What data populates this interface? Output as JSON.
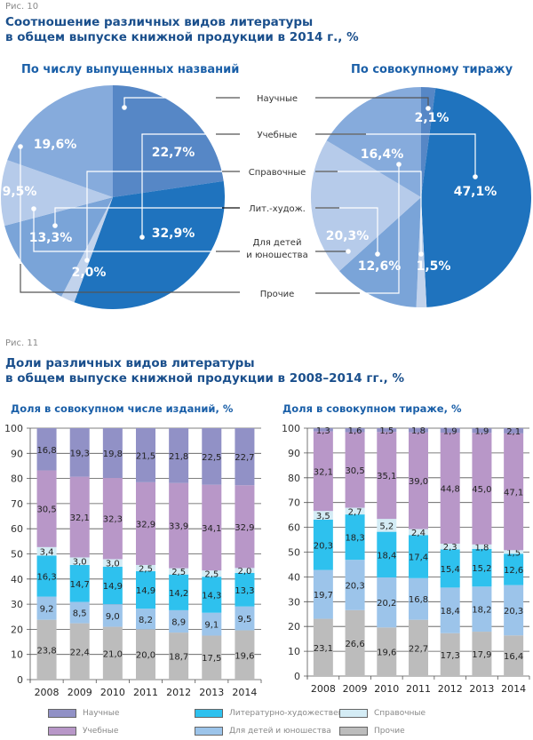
{
  "fig10": {
    "number": "Рис. 10",
    "title_line1": "Соотношение различных видов литературы",
    "title_line2": "в общем выпуске книжной продукции в 2014 г., %"
  },
  "fig11": {
    "number": "Рис. 11",
    "title_line1": "Доли различных видов литературы",
    "title_line2": "в общем выпуске книжной продукции в 2008–2014 гг., %"
  },
  "center_labels": [
    "Научные",
    "Учебные",
    "Справочные",
    "Лит.-худож.",
    "Для детей",
    "и юношества",
    "Прочие"
  ],
  "colors": {
    "pie_scientific": "#5687c6",
    "pie_educational": "#1f73be",
    "pie_reference": "#c2d3ec",
    "pie_fiction": "#7aa4d8",
    "pie_children": "#b6cbea",
    "pie_other": "#86abdc",
    "bar_scientific": "#9191c6",
    "bar_educational": "#b897c8",
    "bar_fiction": "#2ec1ee",
    "bar_reference": "#d4ecf5",
    "bar_children": "#9cc4ea",
    "bar_other": "#bcbcbc"
  },
  "legend": [
    {
      "label": "Научные",
      "color": "#9191c6"
    },
    {
      "label": "Учебные",
      "color": "#b897c8"
    },
    {
      "label": "Литературно-художественные",
      "color": "#2ec1ee"
    },
    {
      "label": "Для детей и юношества",
      "color": "#9cc4ea"
    },
    {
      "label": "Справочные",
      "color": "#d4ecf5"
    },
    {
      "label": "Прочие",
      "color": "#bcbcbc"
    }
  ],
  "chart_data": [
    {
      "type": "pie",
      "title": "По числу выпущенных названий",
      "labels": [
        "Научные",
        "Учебные",
        "Справочные",
        "Лит.-худож.",
        "Для детей и юношества",
        "Прочие"
      ],
      "values": [
        22.7,
        32.9,
        2.0,
        13.3,
        9.5,
        19.6
      ],
      "value_labels": [
        "22,7%",
        "32,9%",
        "2,0%",
        "13,3%",
        "9,5%",
        "19,6%"
      ]
    },
    {
      "type": "pie",
      "title": "По совокупному тиражу",
      "labels": [
        "Научные",
        "Учебные",
        "Справочные",
        "Лит.-худож.",
        "Для детей и юношества",
        "Прочие"
      ],
      "values": [
        2.1,
        47.1,
        1.5,
        12.6,
        20.3,
        16.4
      ],
      "value_labels": [
        "2,1%",
        "47,1%",
        "1,5%",
        "12,6%",
        "20,3%",
        "16,4%"
      ]
    },
    {
      "type": "bar",
      "stacked": true,
      "title": "Доля в совокупном числе изданий, %",
      "categories": [
        "2008",
        "2009",
        "2010",
        "2011",
        "2012",
        "2013",
        "2014"
      ],
      "ylim": [
        0,
        100
      ],
      "yticks": [
        0,
        10,
        20,
        30,
        40,
        50,
        60,
        70,
        80,
        90,
        100
      ],
      "grid": true,
      "series": [
        {
          "name": "Прочие",
          "values": [
            23.8,
            22.4,
            21.0,
            20.0,
            18.7,
            17.5,
            19.6
          ],
          "labels": [
            "23,8",
            "22,4",
            "21,0",
            "20,0",
            "18,7",
            "17,5",
            "19,6"
          ]
        },
        {
          "name": "Для детей и юношества",
          "values": [
            9.2,
            8.5,
            9.0,
            8.2,
            8.9,
            9.1,
            9.5
          ],
          "labels": [
            "9,2",
            "8,5",
            "9,0",
            "8,2",
            "8,9",
            "9,1",
            "9,5"
          ]
        },
        {
          "name": "Литературно-художественные",
          "values": [
            16.3,
            14.7,
            14.9,
            14.9,
            14.2,
            14.3,
            13.3
          ],
          "labels": [
            "16,3",
            "14,7",
            "14,9",
            "14,9",
            "14,2",
            "14,3",
            "13,3"
          ]
        },
        {
          "name": "Справочные",
          "values": [
            3.4,
            3.0,
            3.0,
            2.5,
            2.5,
            2.5,
            2.0
          ],
          "labels": [
            "3,4",
            "3,0",
            "3,0",
            "2,5",
            "2,5",
            "2,5",
            "2,0"
          ]
        },
        {
          "name": "Учебные",
          "values": [
            30.5,
            32.1,
            32.3,
            32.9,
            33.9,
            34.1,
            32.9
          ],
          "labels": [
            "30,5",
            "32,1",
            "32,3",
            "32,9",
            "33,9",
            "34,1",
            "32,9"
          ]
        },
        {
          "name": "Научные",
          "values": [
            16.8,
            19.3,
            19.8,
            21.5,
            21.8,
            22.5,
            22.7
          ],
          "labels": [
            "16,8",
            "19,3",
            "19,8",
            "21,5",
            "21,8",
            "22,5",
            "22,7"
          ]
        }
      ]
    },
    {
      "type": "bar",
      "stacked": true,
      "title": "Доля в совокупном тираже, %",
      "categories": [
        "2008",
        "2009",
        "2010",
        "2011",
        "2012",
        "2013",
        "2014"
      ],
      "ylim": [
        0,
        100
      ],
      "yticks": [
        0,
        10,
        20,
        30,
        40,
        50,
        60,
        70,
        80,
        90,
        100
      ],
      "grid": true,
      "series": [
        {
          "name": "Прочие",
          "values": [
            23.1,
            26.6,
            19.6,
            22.7,
            17.3,
            17.9,
            16.4
          ],
          "labels": [
            "23,1",
            "26,6",
            "19,6",
            "22,7",
            "17,3",
            "17,9",
            "16,4"
          ]
        },
        {
          "name": "Для детей и юношества",
          "values": [
            19.7,
            20.3,
            20.2,
            16.8,
            18.4,
            18.2,
            20.3
          ],
          "labels": [
            "19,7",
            "20,3",
            "20,2",
            "16,8",
            "18,4",
            "18,2",
            "20,3"
          ]
        },
        {
          "name": "Литературно-художественные",
          "values": [
            20.3,
            18.3,
            18.4,
            17.4,
            15.4,
            15.2,
            12.6
          ],
          "labels": [
            "20,3",
            "18,3",
            "18,4",
            "17,4",
            "15,4",
            "15,2",
            "12,6"
          ]
        },
        {
          "name": "Справочные",
          "values": [
            3.5,
            2.7,
            5.2,
            2.4,
            2.3,
            1.8,
            1.5
          ],
          "labels": [
            "3,5",
            "2,7",
            "5,2",
            "2,4",
            "2,3",
            "1,8",
            "1,5"
          ]
        },
        {
          "name": "Учебные",
          "values": [
            32.1,
            30.5,
            35.1,
            39.0,
            44.8,
            45.0,
            47.1
          ],
          "labels": [
            "32,1",
            "30,5",
            "35,1",
            "39,0",
            "44,8",
            "45,0",
            "47,1"
          ]
        },
        {
          "name": "Научные",
          "values": [
            1.3,
            1.6,
            1.5,
            1.8,
            1.9,
            1.9,
            2.1
          ],
          "labels": [
            "1,3",
            "1,6",
            "1,5",
            "1,8",
            "1,9",
            "1,9",
            "2,1"
          ]
        }
      ]
    }
  ]
}
